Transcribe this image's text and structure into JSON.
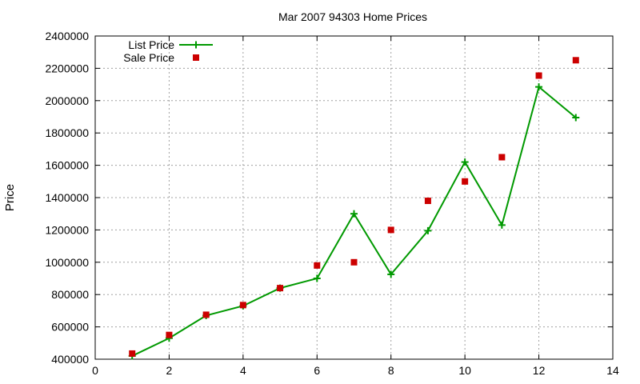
{
  "chart_data": {
    "type": "line",
    "title": "Mar 2007 94303 Home Prices",
    "xlabel": "",
    "ylabel": "Price",
    "xlim": [
      0,
      14
    ],
    "ylim": [
      400000,
      2400000
    ],
    "x_ticks": [
      "0",
      "2",
      "4",
      "6",
      "8",
      "10",
      "12",
      "14"
    ],
    "y_ticks": [
      "400000",
      "600000",
      "800000",
      "1000000",
      "1200000",
      "1400000",
      "1600000",
      "1800000",
      "2000000",
      "2200000",
      "2400000"
    ],
    "grid": true,
    "legend_position": "top-left",
    "series": [
      {
        "name": "List Price",
        "style": "line+cross",
        "color": "#009900",
        "x": [
          1,
          2,
          3,
          4,
          5,
          6,
          7,
          8,
          9,
          10,
          11,
          12,
          13
        ],
        "values": [
          420000,
          530000,
          670000,
          730000,
          840000,
          900000,
          1300000,
          925000,
          1195000,
          1620000,
          1230000,
          2085000,
          1895000
        ]
      },
      {
        "name": "Sale Price",
        "style": "square",
        "color": "#cc0000",
        "x": [
          1,
          2,
          3,
          4,
          5,
          6,
          7,
          8,
          9,
          10,
          11,
          12,
          13
        ],
        "values": [
          435000,
          550000,
          675000,
          735000,
          840000,
          980000,
          1000000,
          1200000,
          1380000,
          1500000,
          1650000,
          2155000,
          2250000
        ]
      }
    ]
  }
}
